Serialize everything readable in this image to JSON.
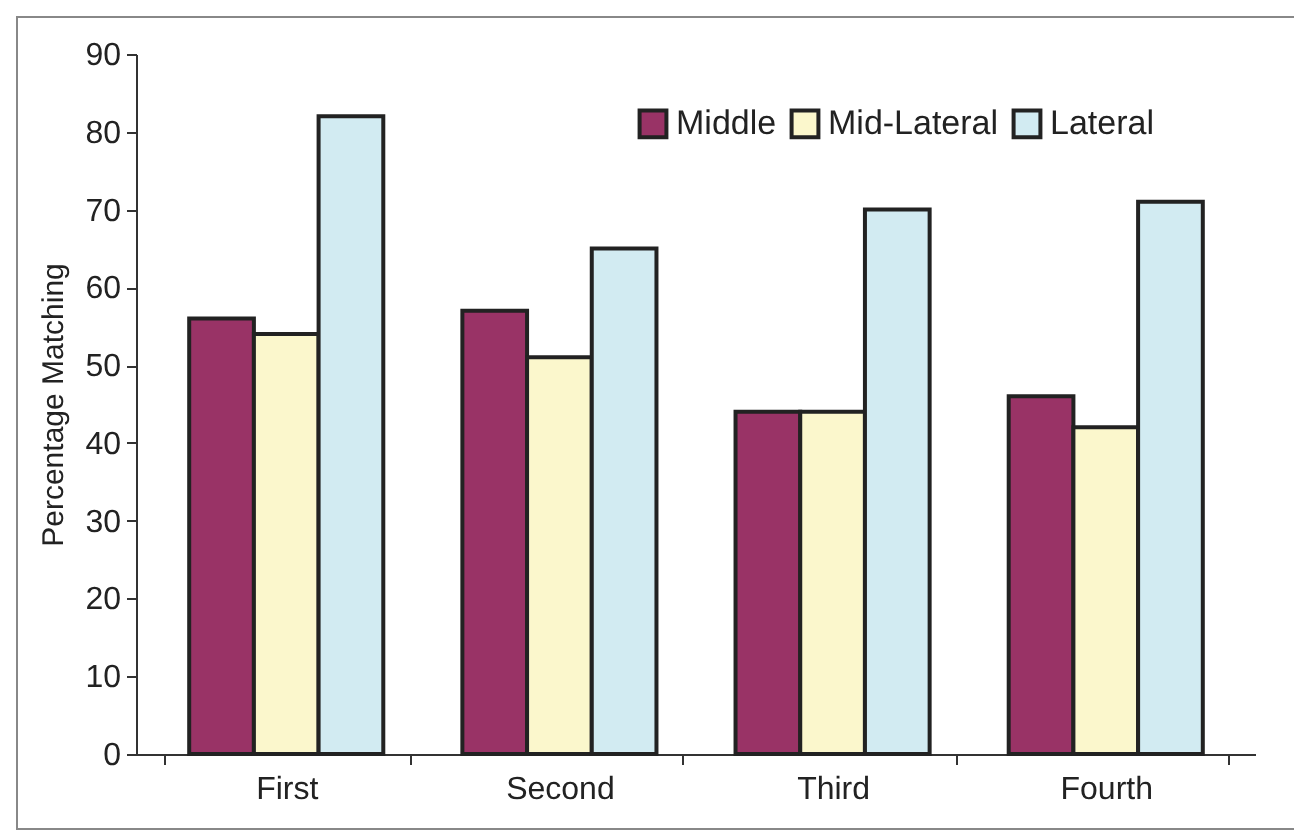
{
  "chart_data": {
    "type": "bar",
    "ylabel": "Percentage Matching",
    "categories": [
      "First",
      "Second",
      "Third",
      "Fourth"
    ],
    "series": [
      {
        "name": "Middle",
        "color": "#993366",
        "values": [
          56,
          57,
          44,
          46
        ]
      },
      {
        "name": "Mid-Lateral",
        "color": "#fbf7cc",
        "values": [
          54,
          51,
          44,
          42
        ]
      },
      {
        "name": "Lateral",
        "color": "#d2ebf2",
        "values": [
          82,
          65,
          70,
          71
        ]
      }
    ],
    "ylim": [
      0,
      90
    ],
    "yticks": [
      0,
      10,
      20,
      30,
      40,
      50,
      60,
      70,
      80,
      90
    ],
    "grid": false,
    "legend": "top right"
  }
}
